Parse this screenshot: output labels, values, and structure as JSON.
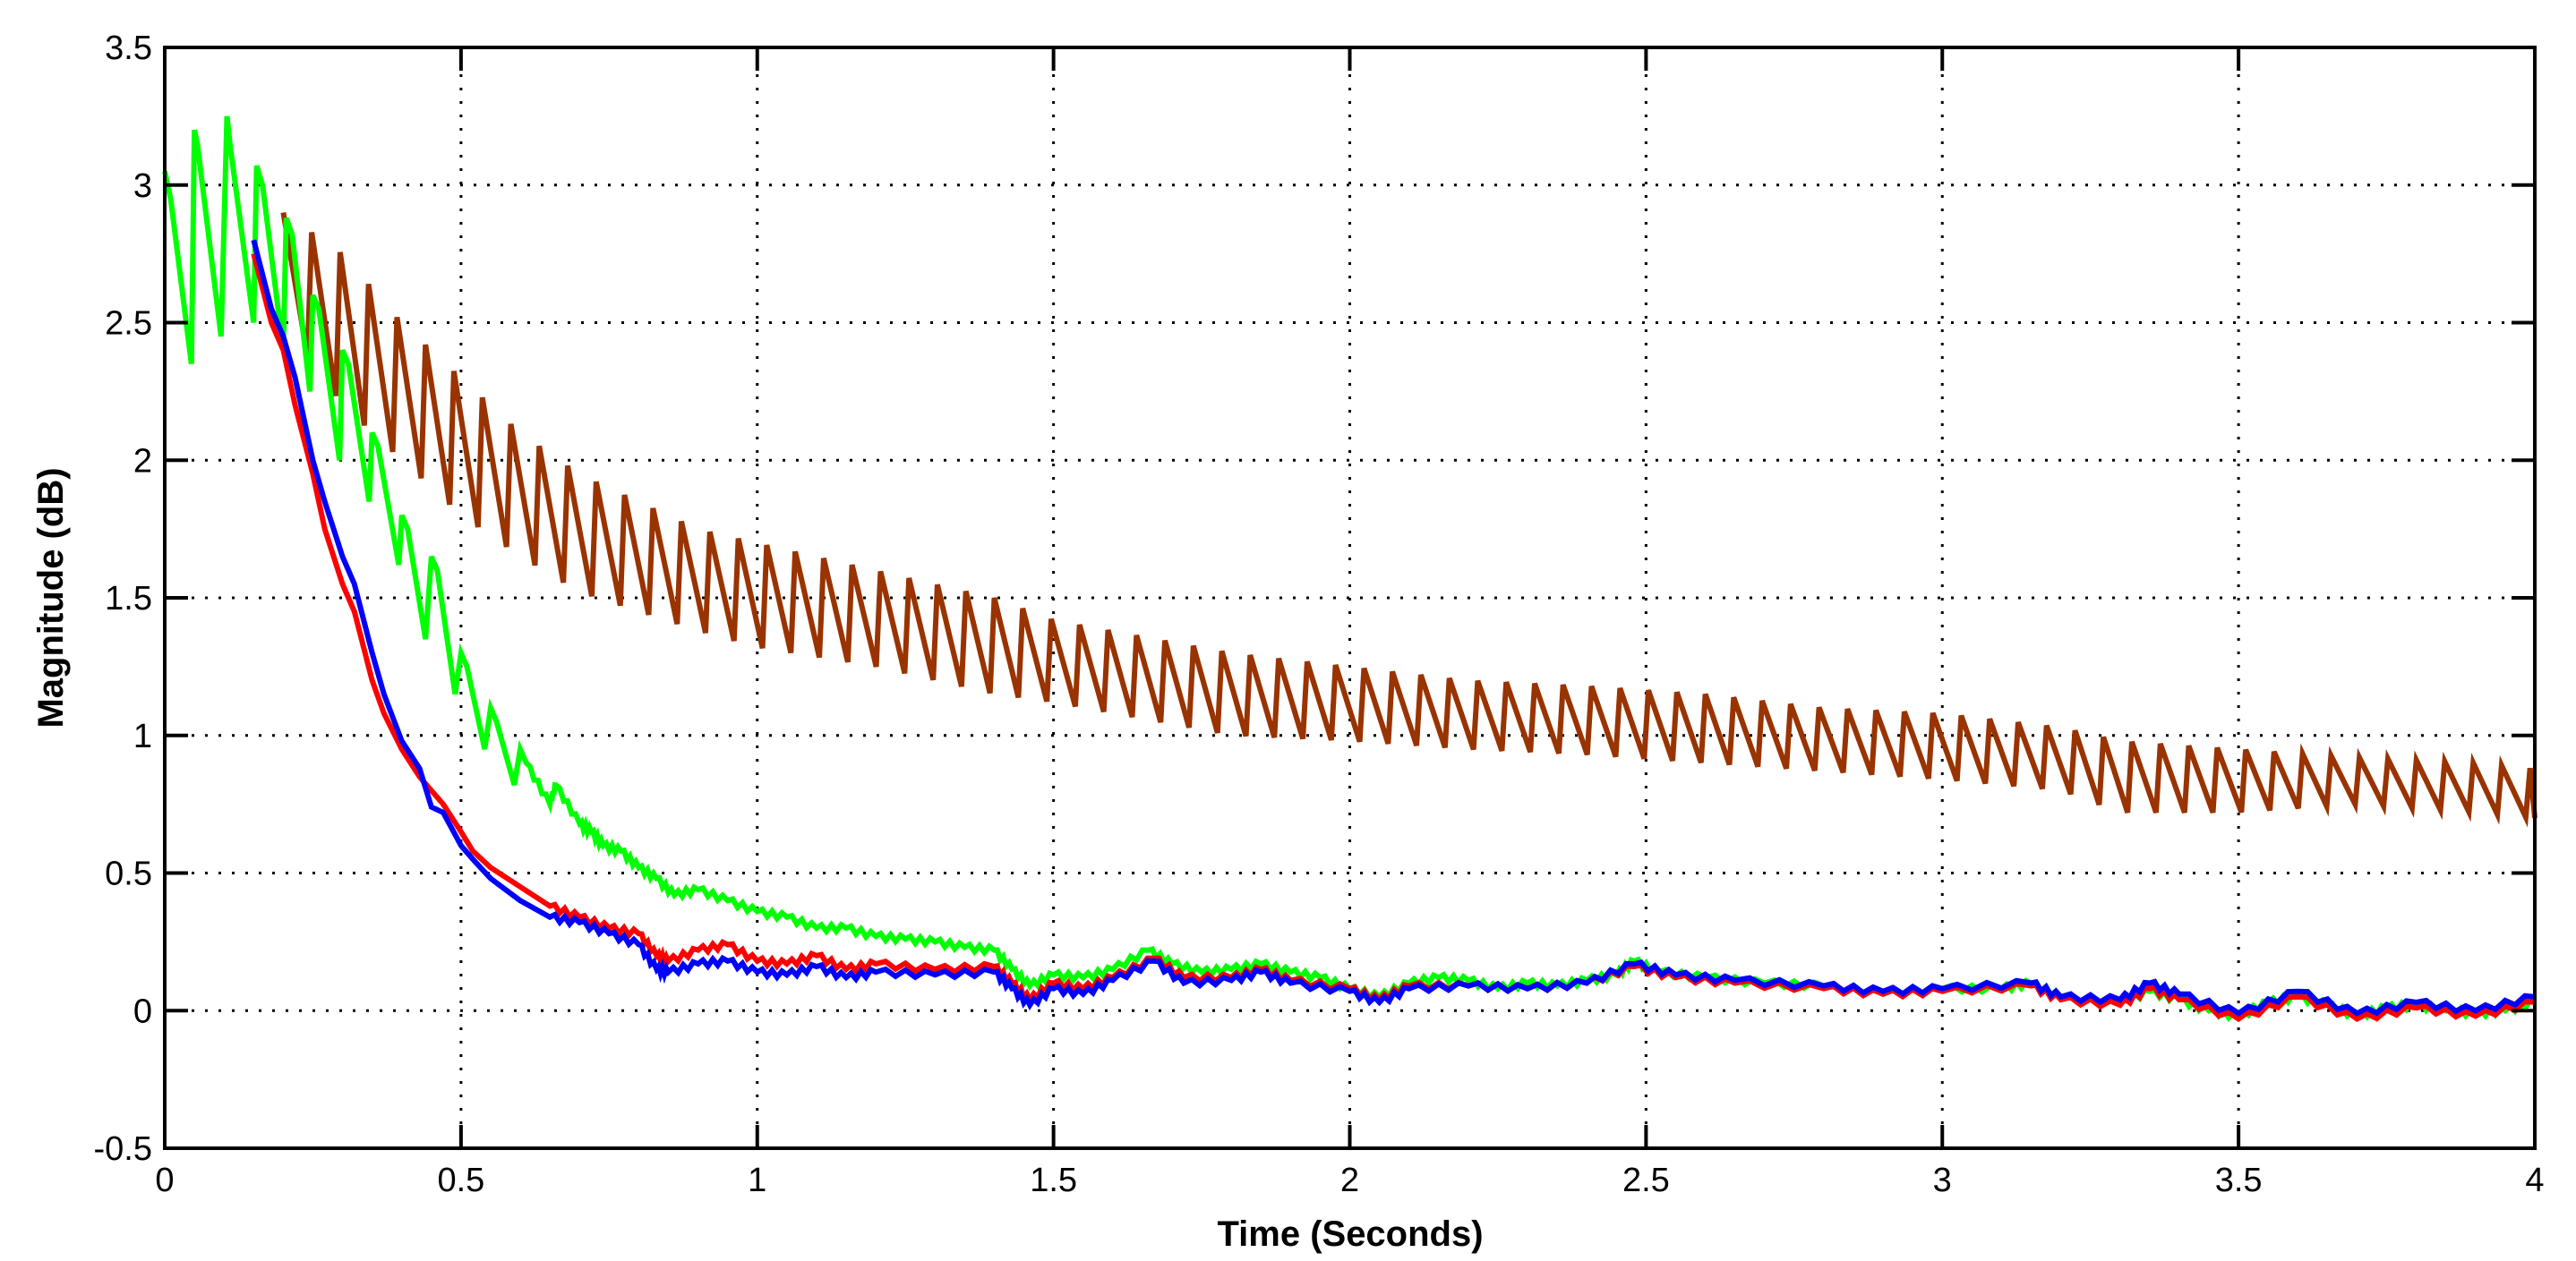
{
  "chart_data": {
    "type": "line",
    "title": "",
    "xlabel": "Time (Seconds)",
    "ylabel": "Magnitude (dB)",
    "xlim": [
      0,
      4
    ],
    "ylim": [
      -0.5,
      3.5
    ],
    "xticks": [
      0,
      0.5,
      1,
      1.5,
      2,
      2.5,
      3,
      3.5,
      4
    ],
    "xtick_labels": [
      "0",
      "0.5",
      "1",
      "1.5",
      "2",
      "2.5",
      "3",
      "3.5",
      "4"
    ],
    "yticks": [
      -0.5,
      0,
      0.5,
      1,
      1.5,
      2,
      2.5,
      3,
      3.5
    ],
    "ytick_labels": [
      "-0.5",
      "0",
      "0.5",
      "1",
      "1.5",
      "2",
      "2.5",
      "3",
      "3.5"
    ],
    "grid": true,
    "legend": null,
    "series": [
      {
        "name": "brown",
        "color": "#993300",
        "sawtooth": {
          "period": 0.048,
          "start": 0.2
        },
        "envelope_top": [
          [
            0.2,
            2.9
          ],
          [
            0.3,
            2.75
          ],
          [
            0.4,
            2.5
          ],
          [
            0.5,
            2.3
          ],
          [
            0.6,
            2.1
          ],
          [
            0.7,
            1.95
          ],
          [
            0.8,
            1.85
          ],
          [
            0.9,
            1.75
          ],
          [
            1.0,
            1.7
          ],
          [
            1.2,
            1.6
          ],
          [
            1.4,
            1.5
          ],
          [
            1.5,
            1.42
          ],
          [
            1.6,
            1.38
          ],
          [
            1.8,
            1.3
          ],
          [
            2.0,
            1.25
          ],
          [
            2.2,
            1.2
          ],
          [
            2.4,
            1.18
          ],
          [
            2.6,
            1.15
          ],
          [
            2.8,
            1.1
          ],
          [
            3.0,
            1.08
          ],
          [
            3.2,
            1.03
          ],
          [
            3.3,
            0.98
          ],
          [
            3.5,
            0.95
          ],
          [
            3.7,
            0.92
          ],
          [
            3.9,
            0.9
          ],
          [
            4.0,
            0.88
          ]
        ],
        "envelope_bottom": [
          [
            0.2,
            2.5
          ],
          [
            0.3,
            2.2
          ],
          [
            0.4,
            2.0
          ],
          [
            0.5,
            1.8
          ],
          [
            0.6,
            1.65
          ],
          [
            0.7,
            1.52
          ],
          [
            0.8,
            1.45
          ],
          [
            0.9,
            1.38
          ],
          [
            1.0,
            1.32
          ],
          [
            1.2,
            1.25
          ],
          [
            1.4,
            1.15
          ],
          [
            1.5,
            1.12
          ],
          [
            1.6,
            1.08
          ],
          [
            1.8,
            1.0
          ],
          [
            2.0,
            0.98
          ],
          [
            2.2,
            0.95
          ],
          [
            2.4,
            0.93
          ],
          [
            2.6,
            0.9
          ],
          [
            2.8,
            0.87
          ],
          [
            3.0,
            0.84
          ],
          [
            3.2,
            0.8
          ],
          [
            3.3,
            0.72
          ],
          [
            3.5,
            0.72
          ],
          [
            3.7,
            0.75
          ],
          [
            3.9,
            0.72
          ],
          [
            4.0,
            0.7
          ]
        ]
      },
      {
        "name": "green",
        "color": "#00ff00",
        "points": [
          [
            0,
            3.05
          ],
          [
            0.005,
            3.0
          ],
          [
            0.01,
            2.95
          ],
          [
            0.045,
            2.35
          ],
          [
            0.05,
            3.2
          ],
          [
            0.055,
            3.15
          ],
          [
            0.095,
            2.45
          ],
          [
            0.105,
            3.25
          ],
          [
            0.11,
            3.15
          ],
          [
            0.15,
            2.5
          ],
          [
            0.155,
            3.07
          ],
          [
            0.165,
            3.0
          ],
          [
            0.2,
            2.4
          ],
          [
            0.205,
            2.88
          ],
          [
            0.215,
            2.82
          ],
          [
            0.245,
            2.25
          ],
          [
            0.25,
            2.6
          ],
          [
            0.26,
            2.55
          ],
          [
            0.295,
            2.0
          ],
          [
            0.3,
            2.4
          ],
          [
            0.31,
            2.35
          ],
          [
            0.345,
            1.85
          ],
          [
            0.35,
            2.1
          ],
          [
            0.36,
            2.05
          ],
          [
            0.395,
            1.62
          ],
          [
            0.4,
            1.8
          ],
          [
            0.41,
            1.75
          ],
          [
            0.44,
            1.35
          ],
          [
            0.45,
            1.65
          ],
          [
            0.46,
            1.6
          ],
          [
            0.49,
            1.15
          ],
          [
            0.5,
            1.3
          ],
          [
            0.51,
            1.25
          ],
          [
            0.54,
            0.95
          ],
          [
            0.55,
            1.1
          ],
          [
            0.56,
            1.05
          ],
          [
            0.59,
            0.82
          ],
          [
            0.6,
            0.95
          ],
          [
            0.61,
            0.9
          ],
          [
            0.65,
            0.75
          ],
          [
            0.66,
            0.82
          ],
          [
            0.7,
            0.68
          ],
          [
            0.72,
            0.65
          ],
          [
            0.74,
            0.6
          ],
          [
            0.77,
            0.58
          ],
          [
            0.8,
            0.52
          ],
          [
            0.83,
            0.48
          ],
          [
            0.86,
            0.42
          ],
          [
            0.9,
            0.44
          ],
          [
            0.95,
            0.4
          ],
          [
            1.0,
            0.36
          ],
          [
            1.05,
            0.34
          ],
          [
            1.1,
            0.3
          ],
          [
            1.15,
            0.3
          ],
          [
            1.2,
            0.27
          ],
          [
            1.25,
            0.26
          ],
          [
            1.3,
            0.25
          ],
          [
            1.35,
            0.23
          ],
          [
            1.4,
            0.22
          ],
          [
            1.43,
            0.15
          ],
          [
            1.46,
            0.09
          ],
          [
            1.5,
            0.13
          ],
          [
            1.55,
            0.12
          ],
          [
            1.6,
            0.15
          ],
          [
            1.66,
            0.22
          ],
          [
            1.7,
            0.17
          ],
          [
            1.75,
            0.14
          ],
          [
            1.8,
            0.15
          ],
          [
            1.85,
            0.17
          ],
          [
            1.9,
            0.14
          ],
          [
            1.95,
            0.12
          ],
          [
            2.0,
            0.08
          ],
          [
            2.05,
            0.05
          ],
          [
            2.1,
            0.1
          ],
          [
            2.15,
            0.12
          ],
          [
            2.2,
            0.11
          ],
          [
            2.25,
            0.08
          ],
          [
            2.3,
            0.1
          ],
          [
            2.35,
            0.09
          ],
          [
            2.4,
            0.11
          ],
          [
            2.45,
            0.13
          ],
          [
            2.48,
            0.18
          ],
          [
            2.52,
            0.14
          ],
          [
            2.6,
            0.12
          ],
          [
            2.7,
            0.1
          ],
          [
            2.8,
            0.09
          ],
          [
            2.9,
            0.06
          ],
          [
            3.0,
            0.08
          ],
          [
            3.1,
            0.08
          ],
          [
            3.15,
            0.1
          ],
          [
            3.2,
            0.05
          ],
          [
            3.3,
            0.03
          ],
          [
            3.35,
            0.07
          ],
          [
            3.4,
            0.04
          ],
          [
            3.45,
            0.0
          ],
          [
            3.5,
            -0.02
          ],
          [
            3.55,
            0.03
          ],
          [
            3.6,
            0.05
          ],
          [
            3.65,
            0.02
          ],
          [
            3.7,
            -0.02
          ],
          [
            3.75,
            0.01
          ],
          [
            3.8,
            0.02
          ],
          [
            3.85,
            0.0
          ],
          [
            3.9,
            -0.01
          ],
          [
            3.95,
            0.0
          ],
          [
            4.0,
            0.03
          ]
        ]
      },
      {
        "name": "red",
        "color": "#ff0000",
        "points": [
          [
            0.15,
            2.75
          ],
          [
            0.18,
            2.5
          ],
          [
            0.2,
            2.4
          ],
          [
            0.22,
            2.2
          ],
          [
            0.25,
            1.95
          ],
          [
            0.27,
            1.75
          ],
          [
            0.3,
            1.55
          ],
          [
            0.32,
            1.45
          ],
          [
            0.35,
            1.2
          ],
          [
            0.37,
            1.08
          ],
          [
            0.4,
            0.95
          ],
          [
            0.43,
            0.85
          ],
          [
            0.45,
            0.8
          ],
          [
            0.47,
            0.75
          ],
          [
            0.5,
            0.65
          ],
          [
            0.52,
            0.58
          ],
          [
            0.55,
            0.52
          ],
          [
            0.6,
            0.45
          ],
          [
            0.65,
            0.38
          ],
          [
            0.7,
            0.34
          ],
          [
            0.75,
            0.3
          ],
          [
            0.8,
            0.28
          ],
          [
            0.83,
            0.2
          ],
          [
            0.85,
            0.18
          ],
          [
            0.9,
            0.22
          ],
          [
            0.95,
            0.24
          ],
          [
            1.0,
            0.18
          ],
          [
            1.05,
            0.17
          ],
          [
            1.1,
            0.2
          ],
          [
            1.15,
            0.15
          ],
          [
            1.2,
            0.17
          ],
          [
            1.3,
            0.15
          ],
          [
            1.4,
            0.16
          ],
          [
            1.43,
            0.1
          ],
          [
            1.46,
            0.04
          ],
          [
            1.5,
            0.1
          ],
          [
            1.55,
            0.08
          ],
          [
            1.6,
            0.12
          ],
          [
            1.67,
            0.19
          ],
          [
            1.72,
            0.12
          ],
          [
            1.8,
            0.12
          ],
          [
            1.85,
            0.15
          ],
          [
            1.9,
            0.11
          ],
          [
            2.0,
            0.08
          ],
          [
            2.05,
            0.04
          ],
          [
            2.1,
            0.09
          ],
          [
            2.2,
            0.09
          ],
          [
            2.3,
            0.08
          ],
          [
            2.4,
            0.1
          ],
          [
            2.48,
            0.16
          ],
          [
            2.55,
            0.12
          ],
          [
            2.65,
            0.1
          ],
          [
            2.8,
            0.08
          ],
          [
            2.9,
            0.06
          ],
          [
            3.0,
            0.07
          ],
          [
            3.15,
            0.09
          ],
          [
            3.2,
            0.04
          ],
          [
            3.3,
            0.02
          ],
          [
            3.35,
            0.08
          ],
          [
            3.4,
            0.04
          ],
          [
            3.5,
            -0.03
          ],
          [
            3.6,
            0.05
          ],
          [
            3.7,
            -0.03
          ],
          [
            3.8,
            0.01
          ],
          [
            3.9,
            -0.02
          ],
          [
            4.0,
            0.03
          ]
        ]
      },
      {
        "name": "blue",
        "color": "#0000ff",
        "points": [
          [
            0.15,
            2.8
          ],
          [
            0.18,
            2.55
          ],
          [
            0.2,
            2.45
          ],
          [
            0.22,
            2.3
          ],
          [
            0.25,
            2.0
          ],
          [
            0.27,
            1.85
          ],
          [
            0.3,
            1.65
          ],
          [
            0.32,
            1.55
          ],
          [
            0.35,
            1.3
          ],
          [
            0.37,
            1.15
          ],
          [
            0.4,
            0.98
          ],
          [
            0.43,
            0.88
          ],
          [
            0.45,
            0.74
          ],
          [
            0.47,
            0.72
          ],
          [
            0.5,
            0.6
          ],
          [
            0.52,
            0.55
          ],
          [
            0.55,
            0.48
          ],
          [
            0.6,
            0.4
          ],
          [
            0.65,
            0.34
          ],
          [
            0.7,
            0.32
          ],
          [
            0.75,
            0.28
          ],
          [
            0.8,
            0.24
          ],
          [
            0.83,
            0.15
          ],
          [
            0.85,
            0.14
          ],
          [
            0.9,
            0.17
          ],
          [
            0.95,
            0.18
          ],
          [
            1.0,
            0.14
          ],
          [
            1.05,
            0.13
          ],
          [
            1.1,
            0.16
          ],
          [
            1.15,
            0.12
          ],
          [
            1.2,
            0.14
          ],
          [
            1.3,
            0.13
          ],
          [
            1.4,
            0.14
          ],
          [
            1.43,
            0.08
          ],
          [
            1.46,
            0.02
          ],
          [
            1.5,
            0.08
          ],
          [
            1.55,
            0.06
          ],
          [
            1.6,
            0.11
          ],
          [
            1.67,
            0.18
          ],
          [
            1.72,
            0.1
          ],
          [
            1.8,
            0.11
          ],
          [
            1.85,
            0.14
          ],
          [
            1.9,
            0.1
          ],
          [
            2.0,
            0.07
          ],
          [
            2.05,
            0.03
          ],
          [
            2.1,
            0.08
          ],
          [
            2.2,
            0.09
          ],
          [
            2.3,
            0.08
          ],
          [
            2.4,
            0.1
          ],
          [
            2.48,
            0.17
          ],
          [
            2.55,
            0.13
          ],
          [
            2.65,
            0.11
          ],
          [
            2.8,
            0.09
          ],
          [
            2.9,
            0.07
          ],
          [
            3.0,
            0.08
          ],
          [
            3.15,
            0.1
          ],
          [
            3.2,
            0.05
          ],
          [
            3.3,
            0.04
          ],
          [
            3.35,
            0.1
          ],
          [
            3.4,
            0.06
          ],
          [
            3.5,
            -0.01
          ],
          [
            3.6,
            0.07
          ],
          [
            3.7,
            -0.01
          ],
          [
            3.8,
            0.03
          ],
          [
            3.9,
            0.0
          ],
          [
            4.0,
            0.05
          ]
        ]
      }
    ]
  },
  "axes": {
    "xlabel": "Time (Seconds)",
    "ylabel": "Magnitude (dB)"
  }
}
